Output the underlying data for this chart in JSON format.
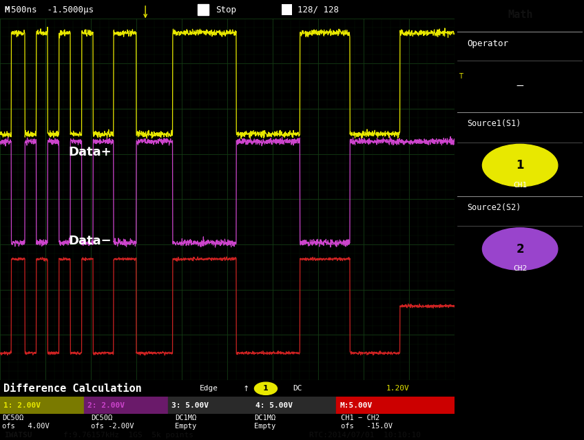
{
  "bg_color": "#000000",
  "screen_bg": "#000000",
  "header_bg": "#1a1a1a",
  "sidebar_bg": "#3d3d3d",
  "grid_color": "#1a4a1a",
  "subgrid_color": "#0d2a0d",
  "header_text": "M500ns  -1.5000μs",
  "header_stop": "Stop",
  "header_acq": "128/ 128",
  "ch1_color": "#e8e800",
  "ch2_color": "#cc44cc",
  "math_color": "#cc2222",
  "label1": "Data+",
  "label2": "Data−",
  "label3": "Difference Calculation",
  "sidebar_title": "Math",
  "sidebar_op": "Operator",
  "sidebar_op_val": "−",
  "sidebar_s1": "Source1(S1)",
  "sidebar_s1_val": "CH1",
  "sidebar_s2": "Source2(S2)",
  "sidebar_s2_val": "CH2",
  "status_edge": "Edge",
  "status_dc": "DC",
  "status_volt": "1.20V",
  "ch1_info": "1: 2.00V",
  "ch2_info": "2: 2.00V",
  "ch3_info": "3: 5.00V",
  "ch4_info": "4: 5.00V",
  "math_info": "M:5.00V",
  "ch1_sub1": "DC50Ω",
  "ch1_sub3": "4.00V",
  "ch2_sub1": "DC50Ω",
  "ch2_sub3": "-2.00V",
  "ch3_sub1": "DC1MΩ",
  "ch3_sub2": "Empty",
  "ch4_sub1": "DC1MΩ",
  "ch4_sub2": "Empty",
  "math_sub1": "CH1 − CH2",
  "math_sub3": "-15.0V",
  "footer": "IWATSU",
  "footer2": "f:9.76157kHz  1GS  5k points",
  "footer3": "RTC:2014/07/01  10:10:10"
}
